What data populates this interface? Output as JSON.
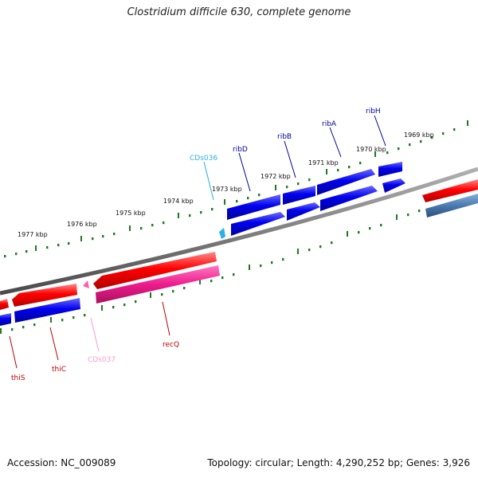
{
  "title": "Clostridium difficile 630, complete genome",
  "footer": {
    "accession": "Accession: NC_009089",
    "topology": "Topology: circular; Length: 4,290,252 bp; Genes: 3,926"
  },
  "colors": {
    "backbone": "#808080",
    "ticks": "#1f7a1f",
    "forward_cds": "#ff0000",
    "reverse_cds": "#0000ee",
    "cds036": "#2ab0e6",
    "cds037": "#ff5aa8",
    "steelblue_cds": "#4a7ab0"
  },
  "kbp_labels": [
    "1969 kbp",
    "1970 kbp",
    "1971 kbp",
    "1972 kbp",
    "1973 kbp",
    "1974 kbp",
    "1975 kbp",
    "1976 kbp",
    "1977 kbp"
  ],
  "gene_labels": {
    "ribH": "ribH",
    "ribA": "ribA",
    "ribB": "ribB",
    "ribD": "ribD",
    "cds036": "CDs036",
    "recQ": "recQ",
    "cds037": "CDs037",
    "thiC": "thiC",
    "thiS": "thiS"
  }
}
